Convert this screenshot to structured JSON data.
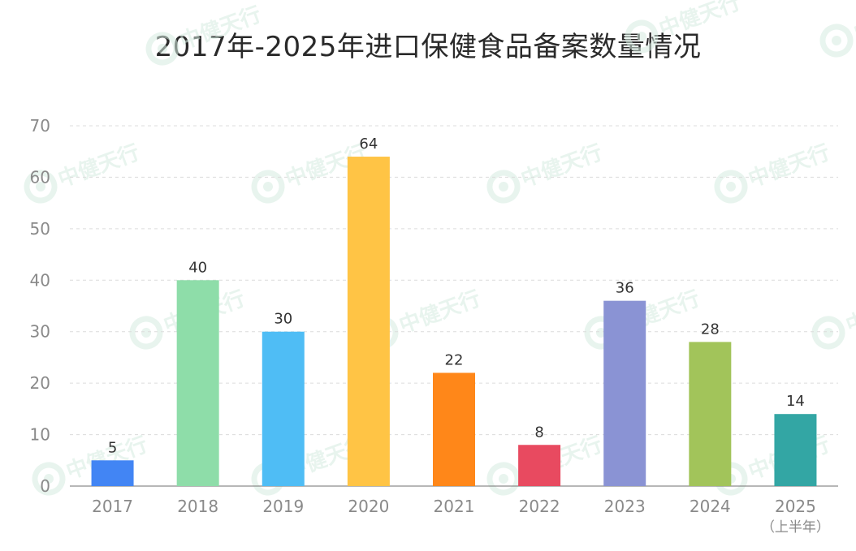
{
  "chart_data": {
    "type": "bar",
    "title": "2017年-2025年进口保健食品备案数量情况",
    "xlabel": "",
    "ylabel": "",
    "ylim": [
      0,
      70
    ],
    "yticks": [
      0,
      10,
      20,
      30,
      40,
      50,
      60,
      70
    ],
    "grid": true,
    "categories": [
      "2017",
      "2018",
      "2019",
      "2020",
      "2021",
      "2022",
      "2023",
      "2024",
      "2025"
    ],
    "category_notes": [
      "",
      "",
      "",
      "",
      "",
      "",
      "",
      "",
      "（上半年）"
    ],
    "values": [
      5,
      40,
      30,
      64,
      22,
      8,
      36,
      28,
      14
    ],
    "colors": [
      "#4285F4",
      "#8EDDA9",
      "#4FBDF5",
      "#FFC445",
      "#FF8719",
      "#E84A60",
      "#8A93D4",
      "#A2C45A",
      "#33A6A4"
    ]
  },
  "watermark": {
    "text": "中健天行"
  }
}
